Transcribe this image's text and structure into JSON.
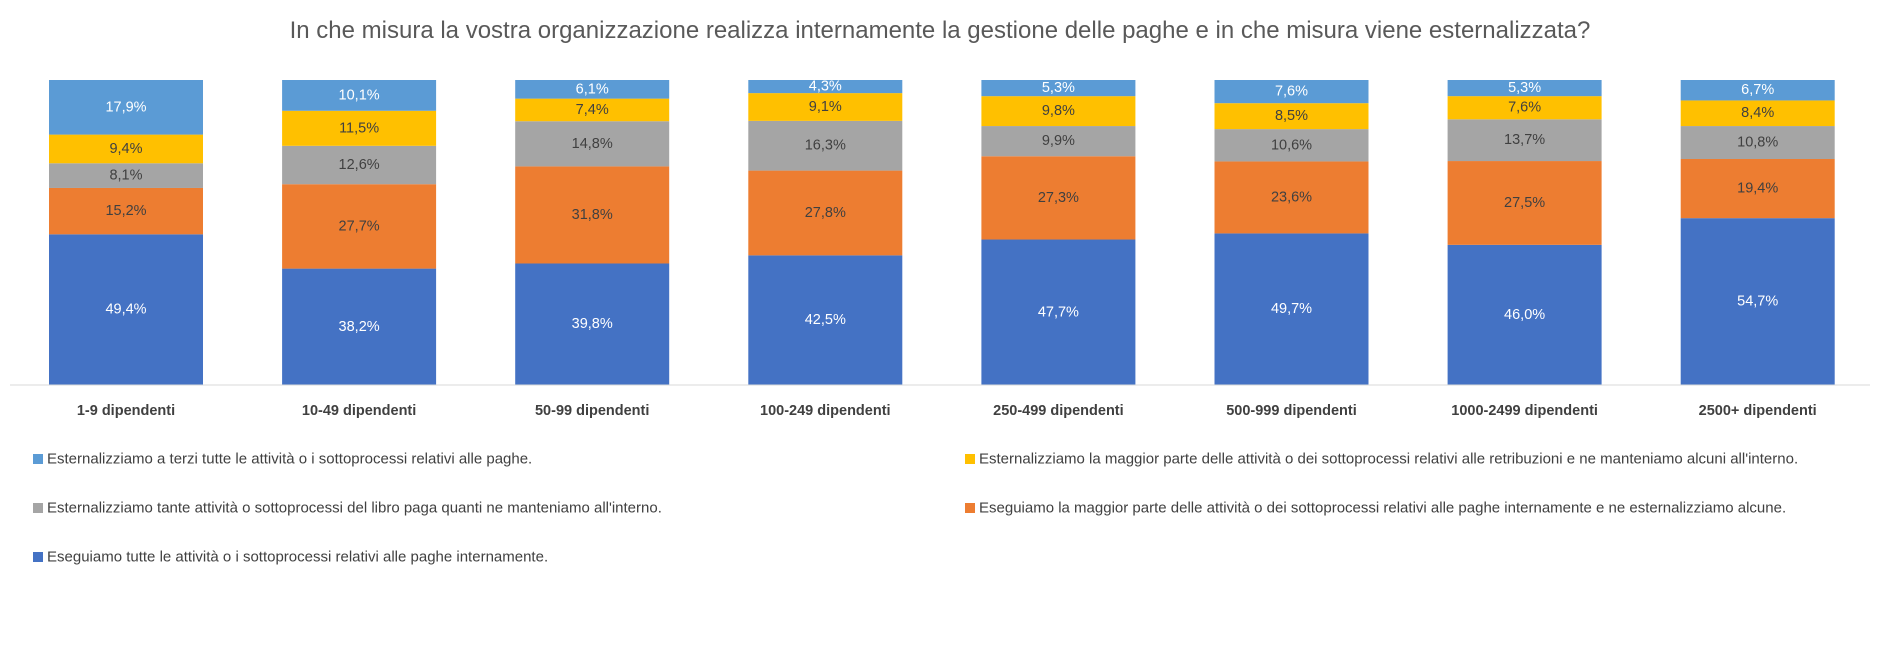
{
  "chart_data": {
    "type": "bar",
    "stacked": true,
    "percent_scale": true,
    "title": "In che misura la vostra organizzazione realizza internamente la gestione delle paghe e in che misura viene esternalizzata?",
    "categories": [
      "1-9 dipendenti",
      "10-49 dipendenti",
      "50-99 dipendenti",
      "100-249 dipendenti",
      "250-499 dipendenti",
      "500-999 dipendenti",
      "1000-2499 dipendenti",
      "2500+ dipendenti"
    ],
    "series": [
      {
        "name": "Eseguiamo tutte le attività o i sottoprocessi relativi alle paghe internamente.",
        "color": "#4472C4",
        "label_color": "#FFFFFF",
        "values": [
          49.4,
          38.2,
          39.8,
          42.5,
          47.7,
          49.7,
          46.0,
          54.7
        ],
        "labels": [
          "49,4%",
          "38,2%",
          "39,8%",
          "42,5%",
          "47,7%",
          "49,7%",
          "46,0%",
          "54,7%"
        ]
      },
      {
        "name": "Eseguiamo la maggior parte delle attività o dei sottoprocessi relativi alle paghe internamente e ne esternalizziamo alcune.",
        "color": "#ED7D31",
        "label_color": "#404040",
        "values": [
          15.2,
          27.7,
          31.8,
          27.8,
          27.3,
          23.6,
          27.5,
          19.4
        ],
        "labels": [
          "15,2%",
          "27,7%",
          "31,8%",
          "27,8%",
          "27,3%",
          "23,6%",
          "27,5%",
          "19,4%"
        ]
      },
      {
        "name": "Esternalizziamo tante attività o sottoprocessi del libro paga quanti ne manteniamo all'interno.",
        "color": "#A5A5A5",
        "label_color": "#404040",
        "values": [
          8.1,
          12.6,
          14.8,
          16.3,
          9.9,
          10.6,
          13.7,
          10.8
        ],
        "labels": [
          "8,1%",
          "12,6%",
          "14,8%",
          "16,3%",
          "9,9%",
          "10,6%",
          "13,7%",
          "10,8%"
        ]
      },
      {
        "name": "Esternalizziamo la maggior parte delle attività o dei sottoprocessi relativi alle retribuzioni e ne manteniamo alcuni all'interno.",
        "color": "#FFC000",
        "label_color": "#404040",
        "values": [
          9.4,
          11.5,
          7.4,
          9.1,
          9.8,
          8.5,
          7.6,
          8.4
        ],
        "labels": [
          "9,4%",
          "11,5%",
          "7,4%",
          "9,1%",
          "9,8%",
          "8,5%",
          "7,6%",
          "8,4%"
        ]
      },
      {
        "name": "Esternalizziamo a terzi tutte le attività o i sottoprocessi relativi alle paghe.",
        "color": "#5B9BD5",
        "label_color": "#FFFFFF",
        "values": [
          17.9,
          10.1,
          6.1,
          4.3,
          5.3,
          7.6,
          5.3,
          6.7
        ],
        "labels": [
          "17,9%",
          "10,1%",
          "6,1%",
          "4,3%",
          "5,3%",
          "7,6%",
          "5,3%",
          "6,7%"
        ]
      }
    ],
    "ylim": [
      0,
      100
    ],
    "grid": false,
    "legend_position": "bottom",
    "legend_order": [
      4,
      3,
      2,
      1,
      0
    ]
  }
}
